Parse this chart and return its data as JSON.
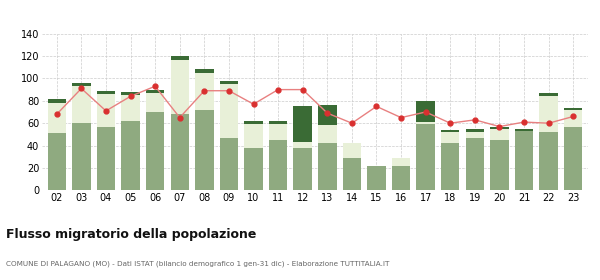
{
  "years": [
    "02",
    "03",
    "04",
    "05",
    "06",
    "07",
    "08",
    "09",
    "10",
    "11",
    "12",
    "13",
    "14",
    "15",
    "16",
    "17",
    "18",
    "19",
    "20",
    "21",
    "22",
    "23"
  ],
  "iscritti_altri_comuni": [
    51,
    60,
    57,
    62,
    70,
    68,
    72,
    47,
    38,
    45,
    38,
    42,
    29,
    22,
    22,
    59,
    42,
    47,
    45,
    53,
    52,
    57
  ],
  "iscritti_estero": [
    27,
    33,
    29,
    23,
    17,
    48,
    33,
    48,
    21,
    14,
    5,
    16,
    13,
    0,
    7,
    2,
    10,
    5,
    10,
    0,
    32,
    15
  ],
  "iscritti_altri": [
    4,
    3,
    3,
    3,
    3,
    4,
    3,
    3,
    3,
    3,
    32,
    18,
    0,
    0,
    0,
    19,
    2,
    3,
    2,
    2,
    3,
    2
  ],
  "cancellati": [
    68,
    91,
    71,
    84,
    93,
    65,
    89,
    89,
    77,
    90,
    90,
    69,
    60,
    75,
    65,
    70,
    60,
    63,
    57,
    61,
    60,
    66
  ],
  "color_altri_comuni": "#8faa80",
  "color_estero": "#e8f0d8",
  "color_altri": "#3a6b35",
  "color_cancellati": "#d93030",
  "color_line": "#e88080",
  "ylim": [
    0,
    140
  ],
  "yticks": [
    0,
    20,
    40,
    60,
    80,
    100,
    120,
    140
  ],
  "title": "Flusso migratorio della popolazione",
  "subtitle": "COMUNE DI PALAGANO (MO) - Dati ISTAT (bilancio demografico 1 gen-31 dic) - Elaborazione TUTTITALIA.IT",
  "background_color": "#ffffff",
  "grid_color": "#cccccc"
}
